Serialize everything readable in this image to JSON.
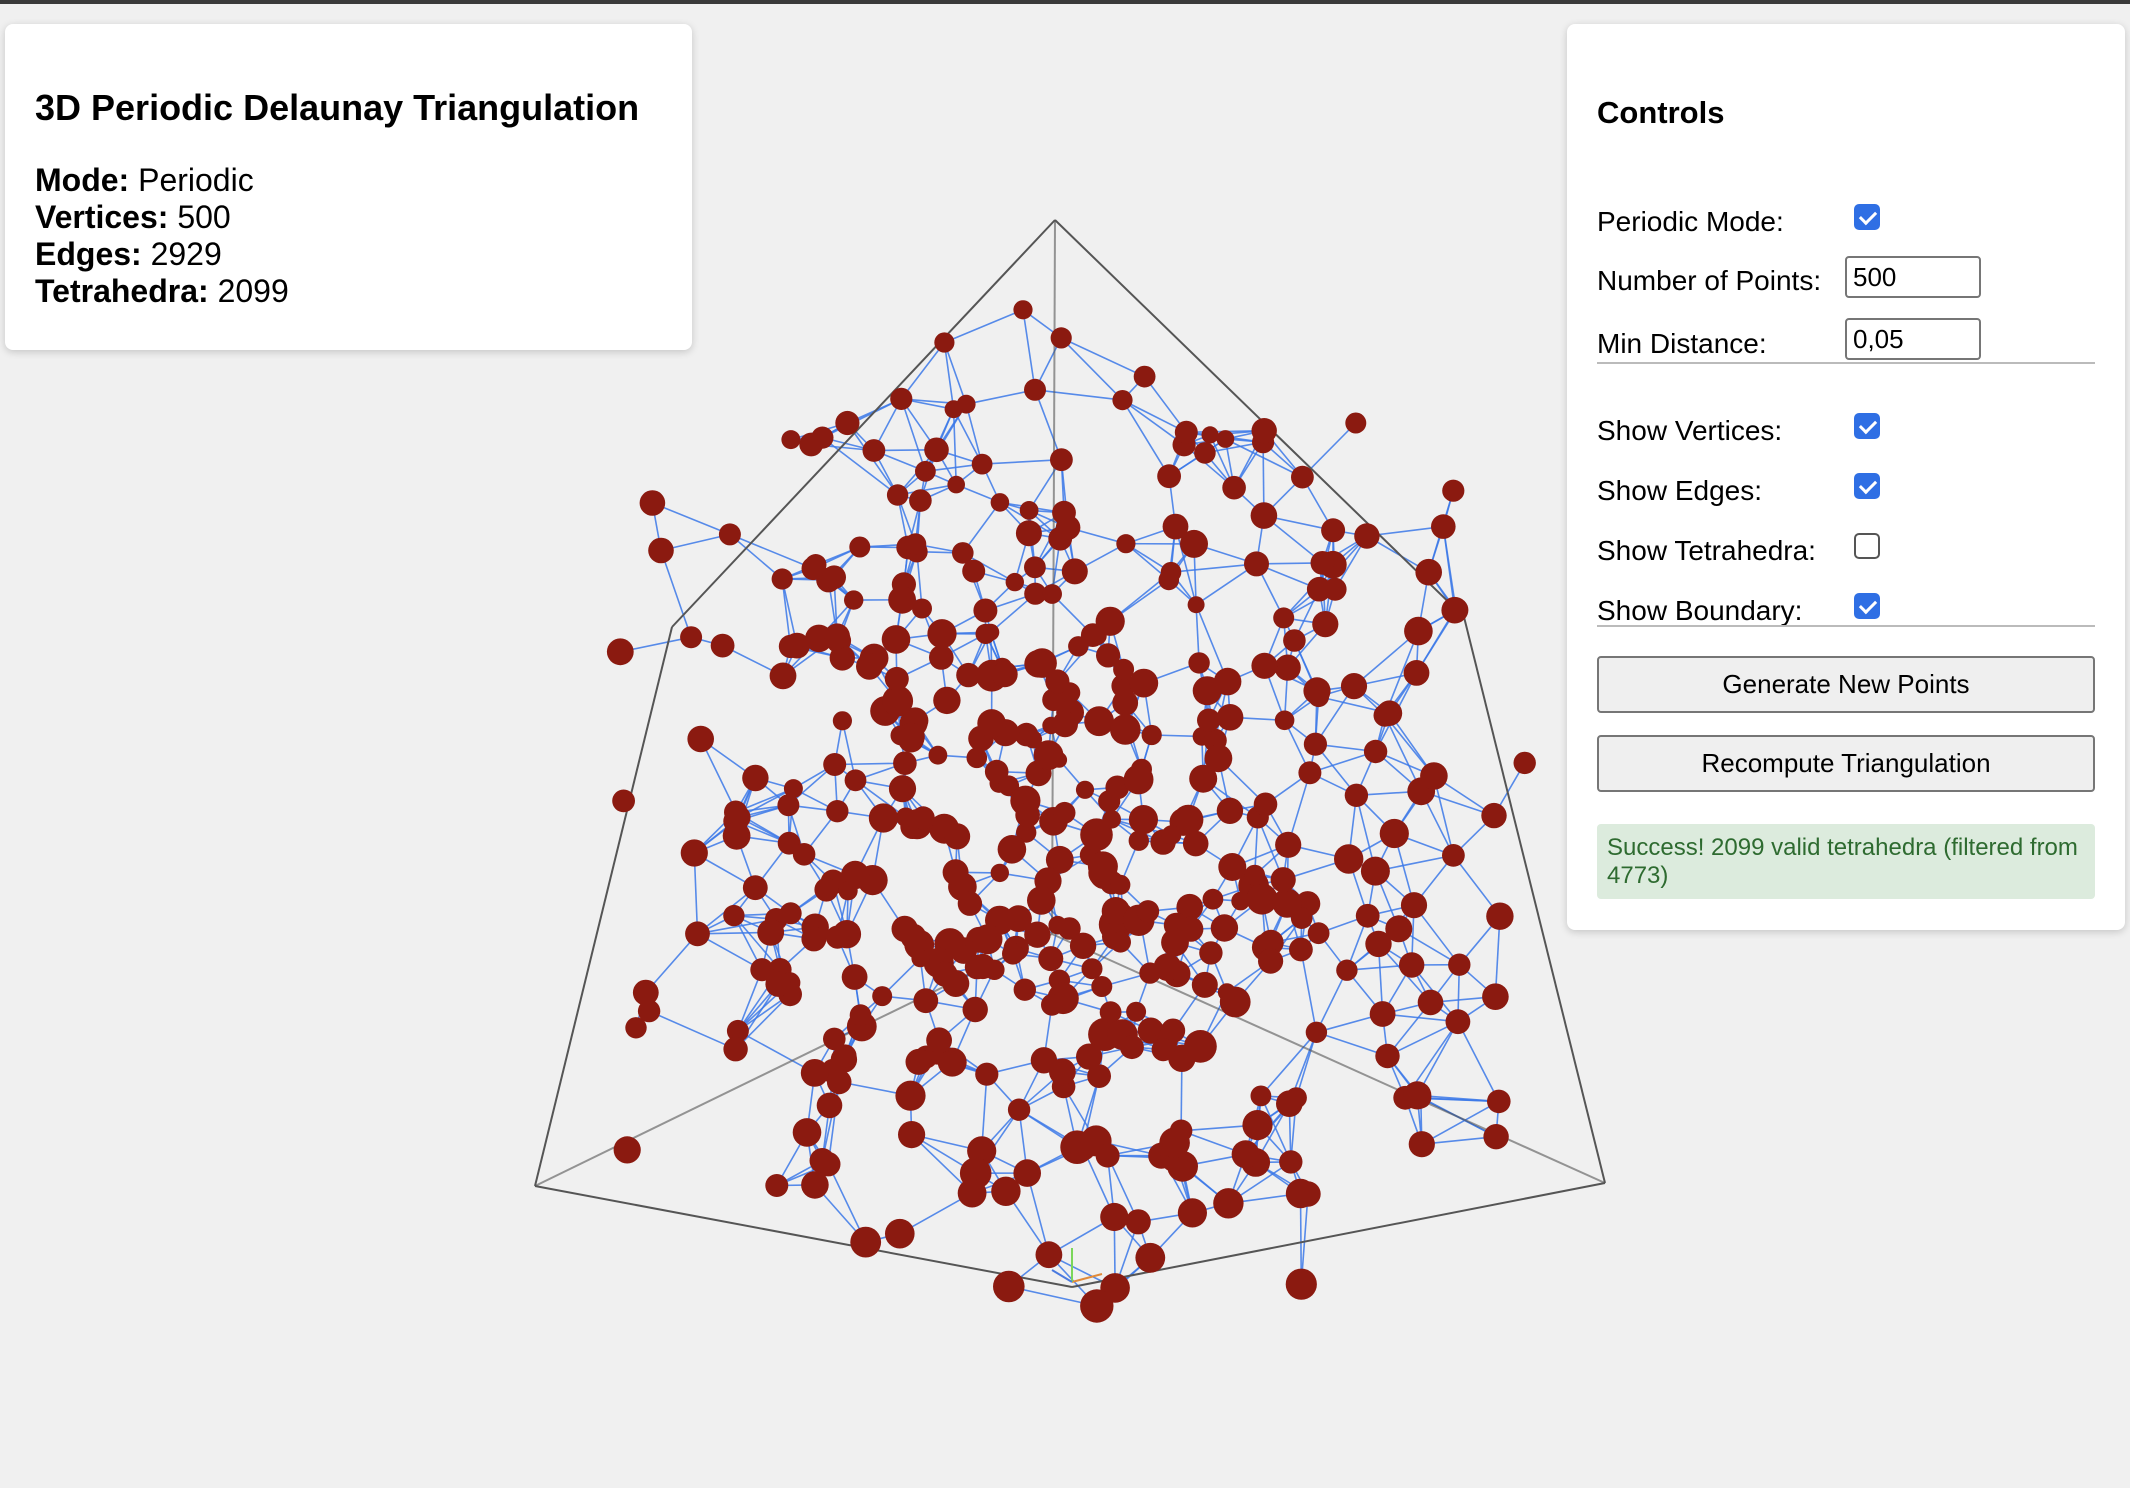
{
  "info": {
    "title": "3D Periodic Delaunay Triangulation",
    "mode_label": "Mode:",
    "mode_value": "Periodic",
    "vertices_label": "Vertices:",
    "vertices_value": "500",
    "edges_label": "Edges:",
    "edges_value": "2929",
    "tetrahedra_label": "Tetrahedra:",
    "tetrahedra_value": "2099"
  },
  "controls": {
    "title": "Controls",
    "periodic_mode_label": "Periodic Mode:",
    "periodic_mode_checked": true,
    "num_points_label": "Number of Points:",
    "num_points_value": "500",
    "min_distance_label": "Min Distance:",
    "min_distance_value": "0,05",
    "show_vertices_label": "Show Vertices:",
    "show_vertices_checked": true,
    "show_edges_label": "Show Edges:",
    "show_edges_checked": true,
    "show_tetrahedra_label": "Show Tetrahedra:",
    "show_tetrahedra_checked": false,
    "show_boundary_label": "Show Boundary:",
    "show_boundary_checked": true,
    "generate_button": "Generate New Points",
    "recompute_button": "Recompute Triangulation",
    "status_message": "Success! 2099 valid tetrahedra (filtered from 4773)"
  },
  "colors": {
    "background": "#f0f0f0",
    "vertex": "#8b1a10",
    "edge": "#3b78e7",
    "boundary": "#555555",
    "checkbox_accent": "#2f6fe4",
    "status_bg": "#dcebdd",
    "status_text": "#2e6b30"
  }
}
